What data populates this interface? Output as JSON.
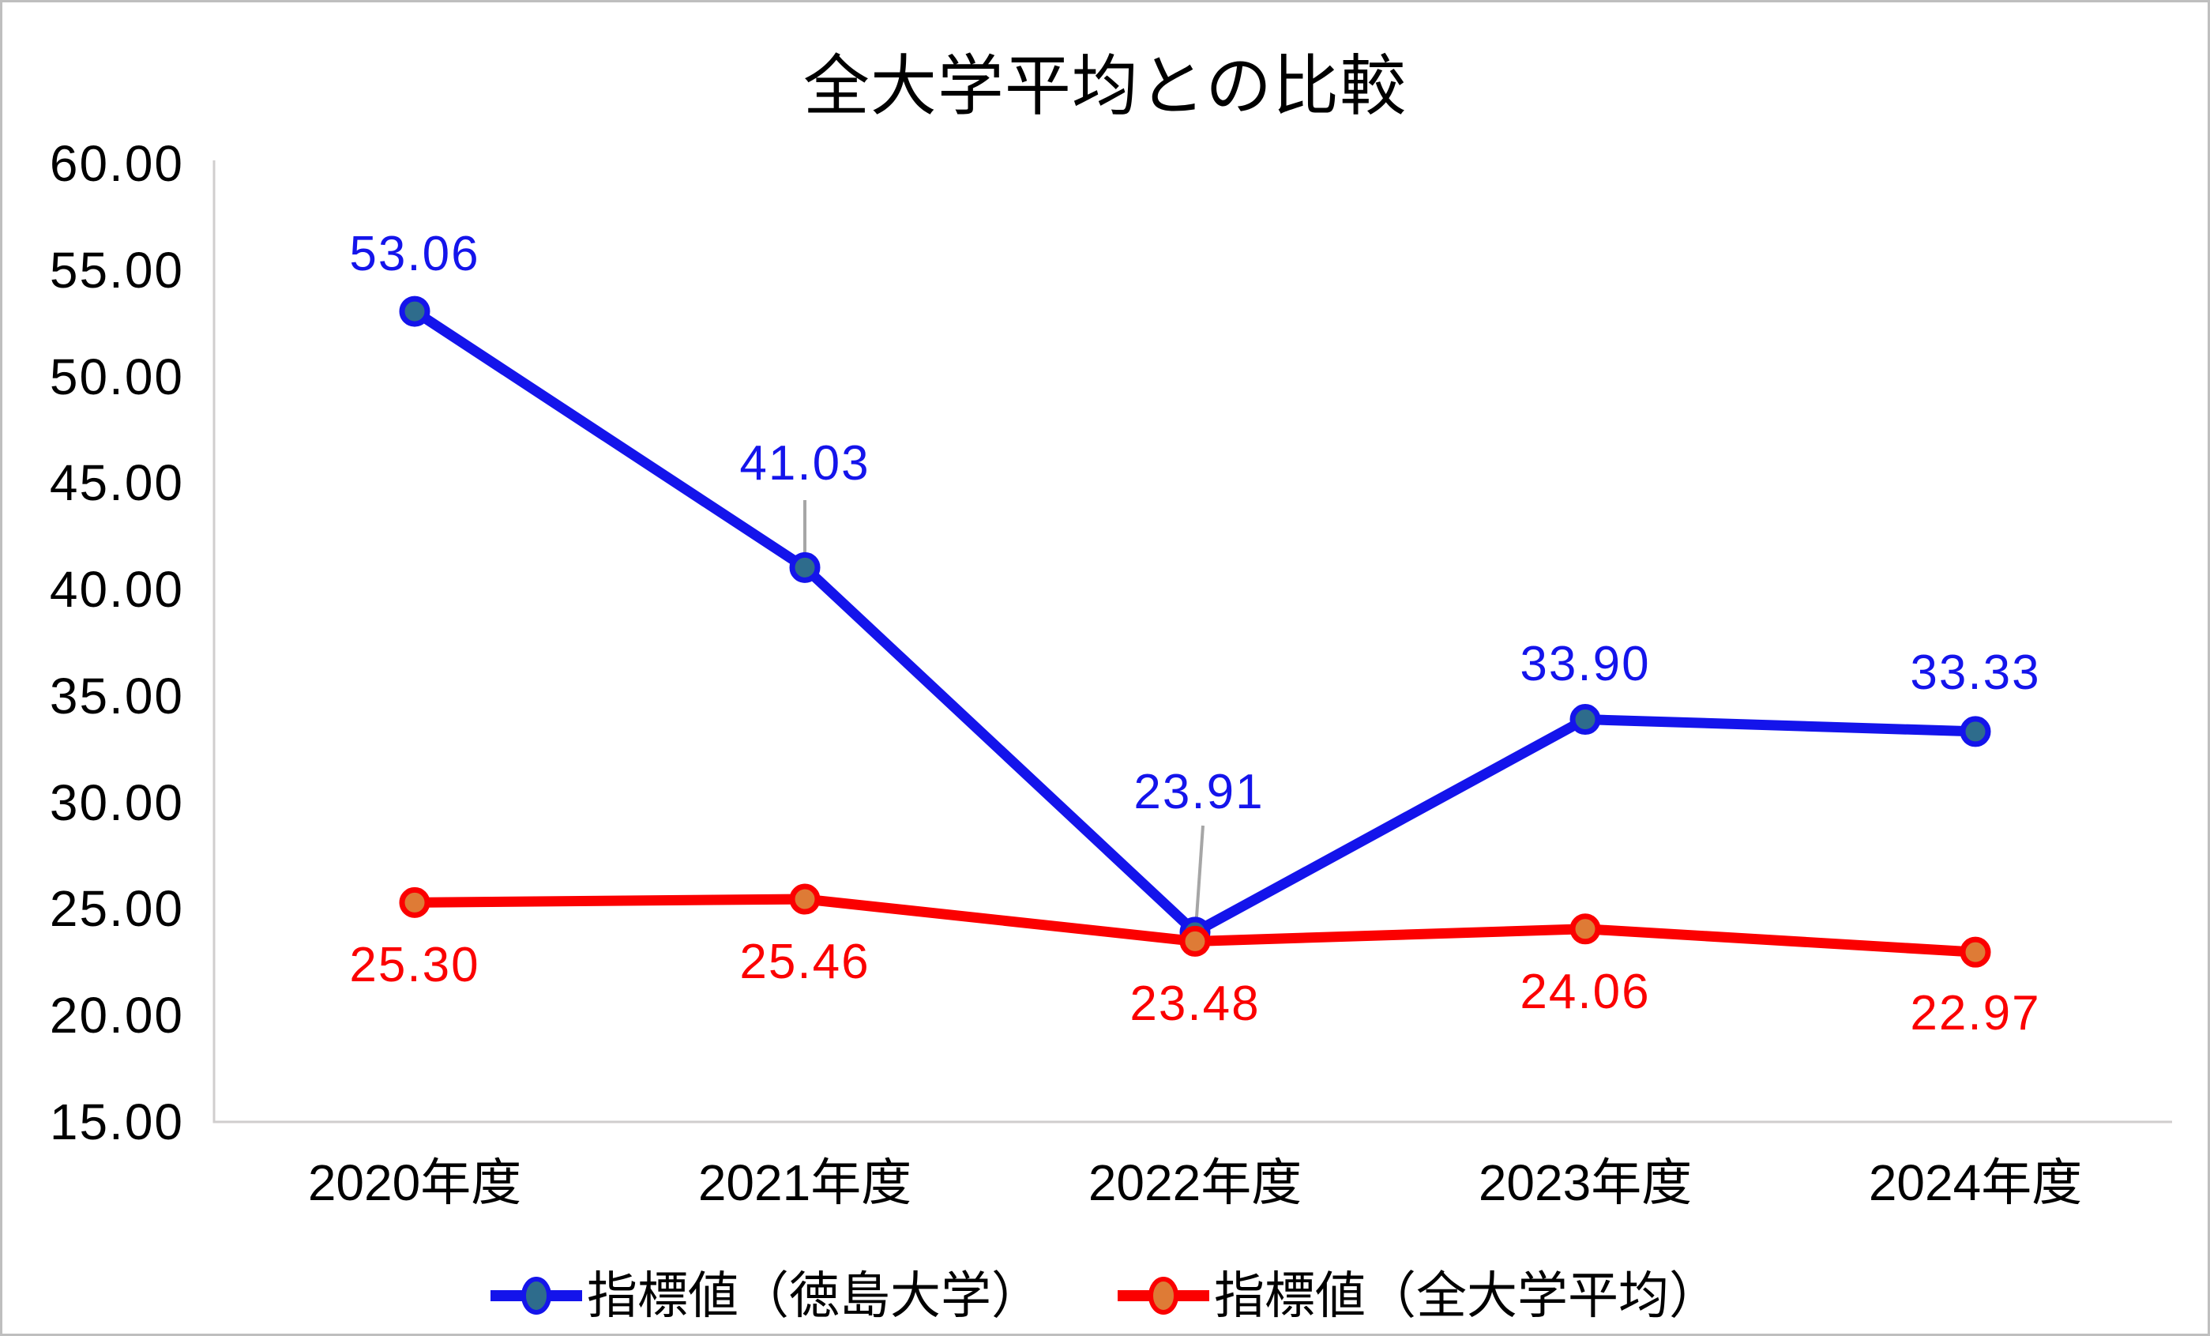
{
  "chart_data": {
    "type": "line",
    "title": "全大学平均との比較",
    "categories": [
      "2020年度",
      "2021年度",
      "2022年度",
      "2023年度",
      "2024年度"
    ],
    "series": [
      {
        "name": "指標値（徳島大学）",
        "values": [
          53.06,
          41.03,
          23.91,
          33.9,
          33.33
        ],
        "data_labels": [
          "53.06",
          "41.03",
          "23.91",
          "33.90",
          "33.33"
        ],
        "line_color": "#1414EB",
        "marker_color": "#2E6C8C"
      },
      {
        "name": "指標値（全大学平均）",
        "values": [
          25.3,
          25.46,
          23.48,
          24.06,
          22.97
        ],
        "data_labels": [
          "25.30",
          "25.46",
          "23.48",
          "24.06",
          "22.97"
        ],
        "line_color": "#FB0000",
        "marker_color": "#DE7B36"
      }
    ],
    "ylim": [
      15,
      60
    ],
    "ytick_step": 5,
    "y_tick_labels": [
      "60.00",
      "55.00",
      "50.00",
      "45.00",
      "40.00",
      "35.00",
      "30.00",
      "25.00",
      "20.00",
      "15.00"
    ],
    "grid": false,
    "legend_position": "bottom",
    "axis_color": "#D0CECE",
    "leader_line_color": "#A6A6A6",
    "frame_border_color": "#BFBFBF",
    "title_color": "#000000"
  }
}
